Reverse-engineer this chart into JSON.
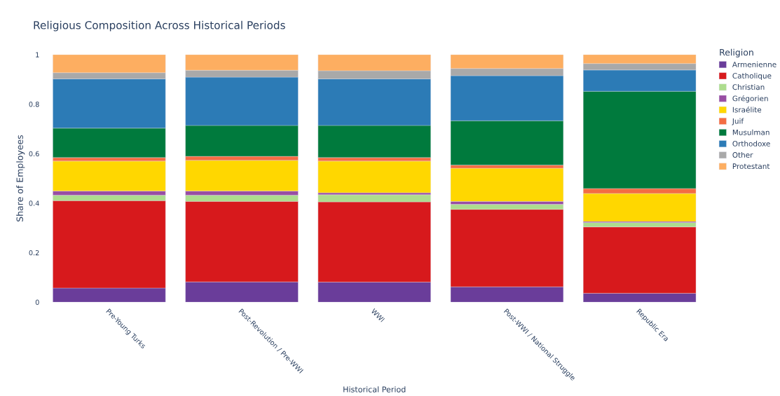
{
  "chart_data": {
    "type": "bar",
    "title": "Religious Composition Across Historical Periods",
    "xlabel": "Historical Period",
    "ylabel": "Share of Employees",
    "legend_title": "Religion",
    "categories": [
      "Pre-Young Turks",
      "Post-Revolution / Pre-WWI",
      "WWI",
      "Post-WWI / National Struggle",
      "Republic Era"
    ],
    "stacked": true,
    "ylim": [
      0,
      1
    ],
    "yticks": [
      0,
      0.2,
      0.4,
      0.6,
      0.8,
      1
    ],
    "grid": false,
    "legend": "top right",
    "series": [
      {
        "name": "Armenienne",
        "color": "#6a3d9a",
        "values": [
          0.057,
          0.082,
          0.081,
          0.062,
          0.036
        ]
      },
      {
        "name": "Catholique",
        "color": "#d7191c",
        "values": [
          0.353,
          0.325,
          0.324,
          0.313,
          0.268
        ]
      },
      {
        "name": "Christian",
        "color": "#addd8e",
        "values": [
          0.022,
          0.025,
          0.029,
          0.02,
          0.018
        ]
      },
      {
        "name": "Grégorien",
        "color": "#984ea3",
        "values": [
          0.017,
          0.017,
          0.008,
          0.012,
          0.004
        ]
      },
      {
        "name": "Israélite",
        "color": "#ffd700",
        "values": [
          0.121,
          0.124,
          0.128,
          0.134,
          0.113
        ]
      },
      {
        "name": "Juif",
        "color": "#f46d43",
        "values": [
          0.014,
          0.016,
          0.014,
          0.013,
          0.02
        ]
      },
      {
        "name": "Musulman",
        "color": "#007a3d",
        "values": [
          0.119,
          0.125,
          0.13,
          0.179,
          0.393
        ]
      },
      {
        "name": "Orthodoxe",
        "color": "#2c7bb6",
        "values": [
          0.199,
          0.195,
          0.188,
          0.182,
          0.086
        ]
      },
      {
        "name": "Other",
        "color": "#a9a9a9",
        "values": [
          0.025,
          0.028,
          0.033,
          0.029,
          0.026
        ]
      },
      {
        "name": "Protestant",
        "color": "#fdae61",
        "values": [
          0.073,
          0.063,
          0.065,
          0.056,
          0.036
        ]
      }
    ]
  }
}
